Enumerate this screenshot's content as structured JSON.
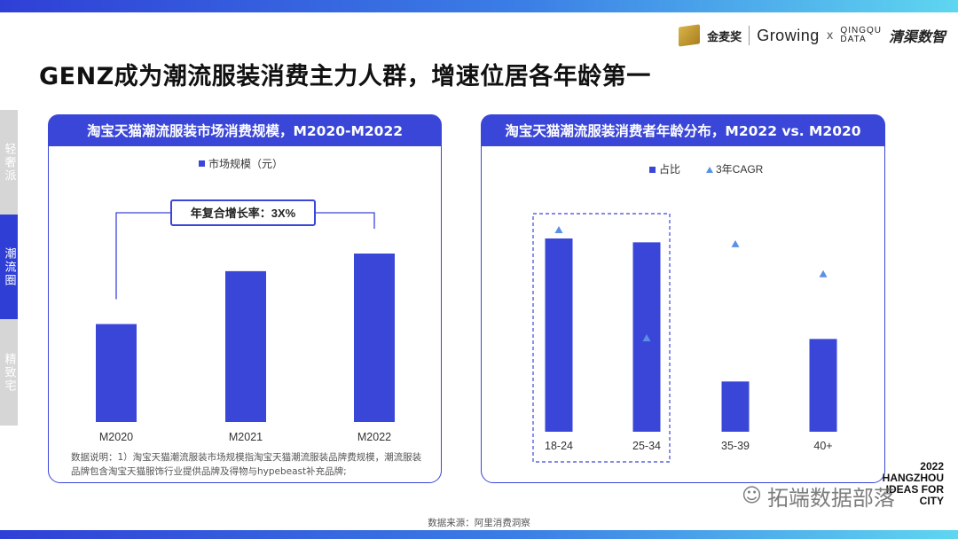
{
  "page": {
    "title": "GENZ成为潮流服装消费主力人群，增速位居各年龄第一",
    "footnote": "数据说明：1）淘宝天猫潮流服装市场规模指淘宝天猫潮流服装品牌费规模，潮流服装品牌包含淘宝天猫服饰行业提供品牌及得物与hypebeast补充品牌;",
    "source": "数据来源：阿里消费洞察",
    "watermark": "拓端数据部落",
    "event": [
      "2022",
      "HANGZHOU",
      "IDEAS FOR",
      "CITY"
    ]
  },
  "logos": {
    "jinmaijiang": "金麦奖",
    "growing": "Growing",
    "x": "x",
    "qingqu_line1": "QINGQU",
    "qingqu_line2": "DATA",
    "qingqu_cn": "清渠数智"
  },
  "side_tabs": [
    {
      "label": "轻奢派",
      "active": false
    },
    {
      "label": "潮流圈",
      "active": true
    },
    {
      "label": "精致宅",
      "active": false
    }
  ],
  "colors": {
    "accent": "#3a46d8",
    "bar": "#3a46d8",
    "triangle": "#5b8fe6",
    "inactive_tab": "#d6d6d6"
  },
  "chart_data": [
    {
      "type": "bar",
      "title": "淘宝天猫潮流服装市场消费规模，M2020-M2022",
      "legend": "市场规模（元）",
      "legend_position": "top",
      "categories": [
        "M2020",
        "M2021",
        "M2022"
      ],
      "values": [
        1.0,
        1.54,
        1.72
      ],
      "annotation": "年复合增长率：3X%",
      "grid": false,
      "value_axis_shown": false
    },
    {
      "type": "bar",
      "title": "淘宝天猫潮流服装消费者年龄分布，M2022 vs. M2020",
      "legend": [
        "占比",
        "3年CAGR"
      ],
      "legend_position": "top",
      "categories": [
        "18-24",
        "25-34",
        "35-39",
        "40+"
      ],
      "series": [
        {
          "name": "占比",
          "kind": "bar",
          "values": [
            1.0,
            0.98,
            0.26,
            0.48
          ]
        },
        {
          "name": "3年CAGR",
          "kind": "triangle-marker",
          "values": [
            1.0,
            0.46,
            0.93,
            0.78
          ]
        }
      ],
      "highlight": [
        "18-24",
        "25-34"
      ],
      "grid": false,
      "value_axis_shown": false
    }
  ]
}
